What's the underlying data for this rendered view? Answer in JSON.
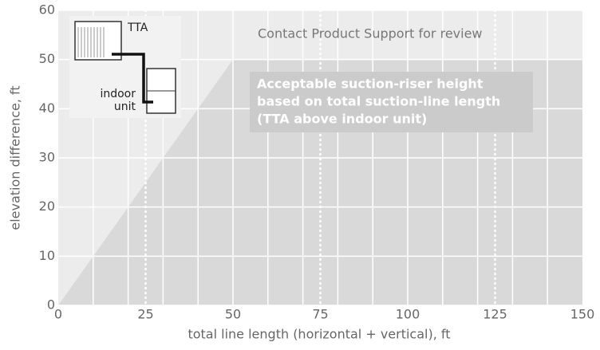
{
  "chart_data": {
    "type": "area",
    "x": [
      0,
      50,
      150
    ],
    "series": [
      {
        "name": "Acceptable suction-riser height",
        "color": "#d9d9d9",
        "values": [
          0,
          50,
          50
        ]
      }
    ],
    "region_label": [
      "Acceptable suction-riser height",
      "based on total suction-line length",
      "(TTA above indoor unit)"
    ],
    "annotation": "Contact Product Support for review",
    "xlabel": "total line length (horizontal + vertical), ft",
    "ylabel": "elevation difference, ft",
    "xlim": [
      0,
      150
    ],
    "ylim": [
      0,
      60
    ],
    "xticks": [
      0,
      25,
      50,
      75,
      100,
      125,
      150
    ],
    "yticks": [
      0,
      10,
      20,
      30,
      40,
      50,
      60
    ],
    "xgrid": [
      10,
      20,
      30,
      40,
      50,
      60,
      70,
      80,
      90,
      100,
      110,
      120,
      130,
      140
    ],
    "dotted_xgrid": [
      25,
      75,
      125
    ],
    "background": "#ececec",
    "inset": {
      "outdoor": "TTA",
      "indoor": [
        "indoor",
        "unit"
      ]
    }
  }
}
